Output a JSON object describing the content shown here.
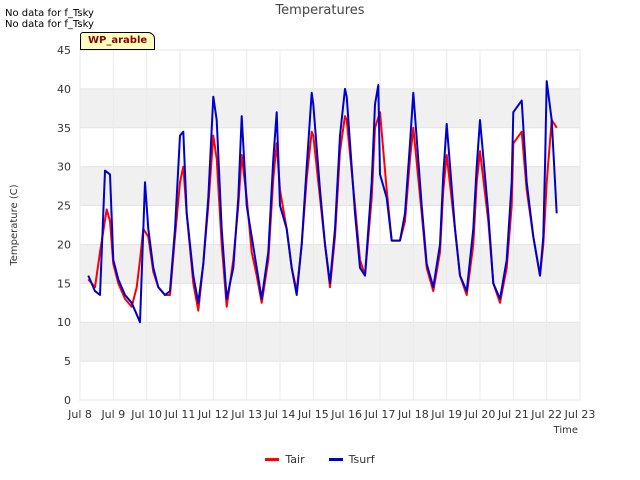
{
  "status_messages": [
    "No data for f_Tsky",
    "No data for f_Tsky"
  ],
  "site_label": "WP_arable",
  "chart_data": {
    "type": "line",
    "title": "Temperatures",
    "xlabel": "Time",
    "ylabel": "Temperature (C)",
    "x_unit": "day of July",
    "xlim": [
      8,
      23
    ],
    "ylim": [
      0,
      45
    ],
    "x_ticks": [
      8,
      9,
      10,
      11,
      12,
      13,
      14,
      15,
      16,
      17,
      18,
      19,
      20,
      21,
      22,
      23
    ],
    "x_tick_labels": [
      "Jul 8",
      "Jul 9",
      "Jul 10",
      "Jul 11",
      "Jul 12",
      "Jul 13",
      "Jul 14",
      "Jul 15",
      "Jul 16",
      "Jul 17",
      "Jul 18",
      "Jul 19",
      "Jul 20",
      "Jul 21",
      "Jul 22",
      "Jul 23"
    ],
    "y_ticks": [
      0,
      5,
      10,
      15,
      20,
      25,
      30,
      35,
      40,
      45
    ],
    "grid": true,
    "legend_position": "bottom-center",
    "series": [
      {
        "name": "Tair",
        "color": "#ff0000",
        "x": [
          8.25,
          8.45,
          8.6,
          8.8,
          8.9,
          9.0,
          9.15,
          9.35,
          9.55,
          9.7,
          9.8,
          9.9,
          10.05,
          10.2,
          10.35,
          10.55,
          10.7,
          10.85,
          11.0,
          11.1,
          11.2,
          11.4,
          11.55,
          11.7,
          11.85,
          12.0,
          12.1,
          12.25,
          12.4,
          12.6,
          12.75,
          12.85,
          13.0,
          13.15,
          13.3,
          13.45,
          13.65,
          13.8,
          13.9,
          14.0,
          14.2,
          14.35,
          14.5,
          14.65,
          14.8,
          14.95,
          15.0,
          15.2,
          15.35,
          15.5,
          15.65,
          15.8,
          15.95,
          16.0,
          16.25,
          16.4,
          16.55,
          16.75,
          16.85,
          17.0,
          17.2,
          17.35,
          17.6,
          17.75,
          17.9,
          18.0,
          18.25,
          18.4,
          18.6,
          18.8,
          18.9,
          19.0,
          19.25,
          19.4,
          19.6,
          19.8,
          19.9,
          20.0,
          20.25,
          20.4,
          20.6,
          20.8,
          20.95,
          21.0,
          21.25,
          21.4,
          21.6,
          21.8,
          21.9,
          22.0,
          22.15,
          22.3
        ],
        "y": [
          15.5,
          14.5,
          19.0,
          24.5,
          23.0,
          17.5,
          15.0,
          13.0,
          12.0,
          14.5,
          18.0,
          22.0,
          21.0,
          16.5,
          14.5,
          13.5,
          13.5,
          21.0,
          28.0,
          30.0,
          24.0,
          15.0,
          11.5,
          17.5,
          25.0,
          34.0,
          31.0,
          20.0,
          12.0,
          18.0,
          25.0,
          31.5,
          26.0,
          19.0,
          16.0,
          12.5,
          18.0,
          28.5,
          33.0,
          27.0,
          22.0,
          17.0,
          14.0,
          20.0,
          28.5,
          34.5,
          34.0,
          26.0,
          20.0,
          14.5,
          21.0,
          32.0,
          36.5,
          36.0,
          25.0,
          18.0,
          16.0,
          26.0,
          35.0,
          37.0,
          27.0,
          20.5,
          20.5,
          23.0,
          31.0,
          35.0,
          24.0,
          17.0,
          14.0,
          19.0,
          27.0,
          31.5,
          22.0,
          16.0,
          13.5,
          20.0,
          28.0,
          32.0,
          23.0,
          15.0,
          12.5,
          17.0,
          25.0,
          33.0,
          34.5,
          27.0,
          21.0,
          16.0,
          20.0,
          28.0,
          36.0,
          35.0
        ]
      },
      {
        "name": "Tsurf",
        "color": "#0000cc",
        "x": [
          8.25,
          8.45,
          8.6,
          8.75,
          8.9,
          9.0,
          9.15,
          9.35,
          9.55,
          9.8,
          9.95,
          10.05,
          10.2,
          10.35,
          10.55,
          10.7,
          10.85,
          11.0,
          11.1,
          11.2,
          11.4,
          11.55,
          11.7,
          11.85,
          12.0,
          12.1,
          12.25,
          12.4,
          12.6,
          12.75,
          12.85,
          13.0,
          13.15,
          13.3,
          13.45,
          13.65,
          13.8,
          13.9,
          14.0,
          14.2,
          14.35,
          14.5,
          14.65,
          14.8,
          14.95,
          15.0,
          15.2,
          15.35,
          15.5,
          15.65,
          15.8,
          15.95,
          16.0,
          16.25,
          16.4,
          16.55,
          16.75,
          16.85,
          16.95,
          17.0,
          17.2,
          17.35,
          17.6,
          17.75,
          17.9,
          18.0,
          18.25,
          18.4,
          18.6,
          18.8,
          18.9,
          19.0,
          19.25,
          19.4,
          19.6,
          19.8,
          19.9,
          20.0,
          20.25,
          20.4,
          20.6,
          20.8,
          20.95,
          21.0,
          21.25,
          21.4,
          21.6,
          21.8,
          21.9,
          21.95,
          22.0,
          22.15,
          22.3
        ],
        "y": [
          16.0,
          14.0,
          13.5,
          29.5,
          29.0,
          18.0,
          15.5,
          13.5,
          12.5,
          10.0,
          28.0,
          22.0,
          17.0,
          14.5,
          13.5,
          14.0,
          22.0,
          34.0,
          34.5,
          24.0,
          16.0,
          12.5,
          17.5,
          26.0,
          39.0,
          36.0,
          22.0,
          13.0,
          17.0,
          26.0,
          36.5,
          25.0,
          21.0,
          17.0,
          13.0,
          19.0,
          31.0,
          37.0,
          25.0,
          22.0,
          17.0,
          13.5,
          20.0,
          30.0,
          39.5,
          38.0,
          27.0,
          20.0,
          15.0,
          22.0,
          34.0,
          40.0,
          39.0,
          24.0,
          17.0,
          16.0,
          28.0,
          38.0,
          40.5,
          29.0,
          26.0,
          20.5,
          20.5,
          24.0,
          33.0,
          39.5,
          25.0,
          17.5,
          14.5,
          20.0,
          29.0,
          35.5,
          22.0,
          16.0,
          14.0,
          22.0,
          30.0,
          36.0,
          24.0,
          15.0,
          13.0,
          18.0,
          28.0,
          37.0,
          38.5,
          28.0,
          21.0,
          16.0,
          21.0,
          30.0,
          41.0,
          36.0,
          24.0
        ]
      }
    ]
  }
}
